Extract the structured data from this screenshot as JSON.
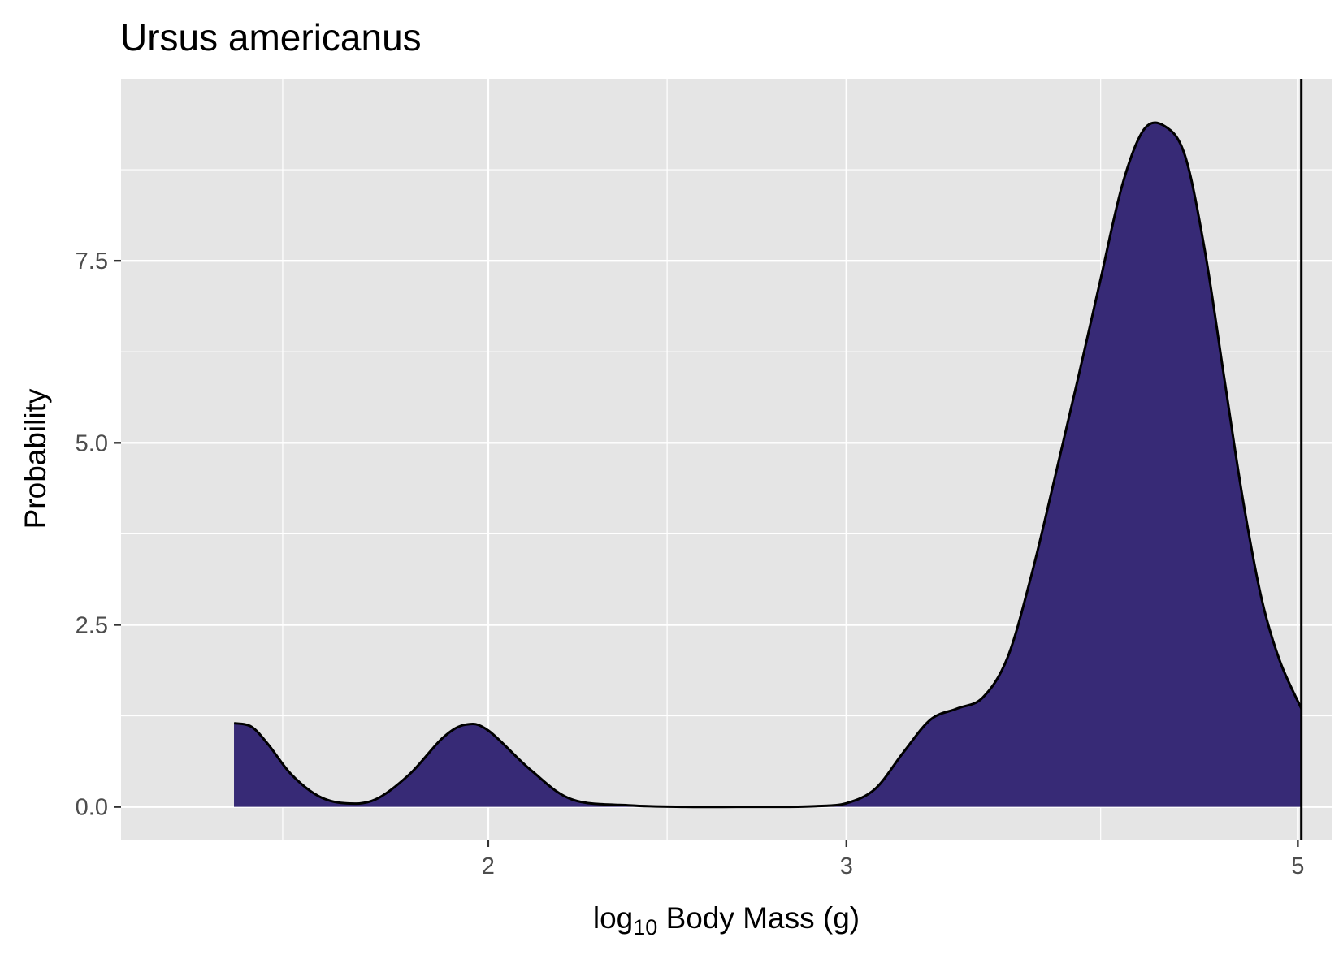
{
  "chart_data": {
    "type": "area",
    "title": "Ursus americanus",
    "xlabel": {
      "prefix": "log",
      "subscript": "10",
      "suffix": " Body Mass (g)"
    },
    "ylabel": "Probability",
    "x_scale": "log10",
    "xlim": [
      1.32,
      5.2
    ],
    "ylim": [
      -0.45,
      10.0
    ],
    "x_ticks": [
      {
        "value": 2,
        "label": "2"
      },
      {
        "value": 3,
        "label": "3"
      },
      {
        "value": 5,
        "label": "5"
      }
    ],
    "y_ticks": [
      {
        "value": 0.0,
        "label": "0.0"
      },
      {
        "value": 2.5,
        "label": "2.5"
      },
      {
        "value": 5.0,
        "label": "5.0"
      },
      {
        "value": 7.5,
        "label": "7.5"
      }
    ],
    "x_minor_grid": [
      1.585,
      2.449,
      4.0
    ],
    "y_minor_grid": [
      1.25,
      3.75,
      6.25,
      8.75
    ],
    "grid": true,
    "legend": "none",
    "reference_line": {
      "x": 5.02
    },
    "series": [
      {
        "x": [
          1.5,
          1.53,
          1.56,
          1.6,
          1.65,
          1.7,
          1.76,
          1.83,
          1.9,
          1.95,
          2.0,
          2.1,
          2.2,
          2.35,
          2.5,
          2.65,
          2.8,
          2.9,
          3.0,
          3.1,
          3.2,
          3.3,
          3.4,
          3.5,
          3.6,
          3.7,
          3.8,
          3.9,
          4.0,
          4.1,
          4.2,
          4.3,
          4.4,
          4.5,
          4.6,
          4.7,
          4.8,
          4.9,
          5.02
        ],
        "y": [
          1.15,
          1.1,
          0.85,
          0.45,
          0.15,
          0.05,
          0.1,
          0.45,
          0.95,
          1.13,
          1.05,
          0.5,
          0.1,
          0.02,
          0.0,
          0.0,
          0.0,
          0.01,
          0.05,
          0.25,
          0.75,
          1.2,
          1.35,
          1.5,
          2.05,
          3.2,
          4.55,
          5.9,
          7.25,
          8.55,
          9.3,
          9.35,
          8.95,
          7.65,
          5.9,
          4.2,
          2.85,
          2.0,
          1.35
        ]
      }
    ],
    "colors": {
      "fill": "#372a76",
      "line": "#000000",
      "panel": "#e5e5e5",
      "grid": "#ffffff"
    }
  }
}
